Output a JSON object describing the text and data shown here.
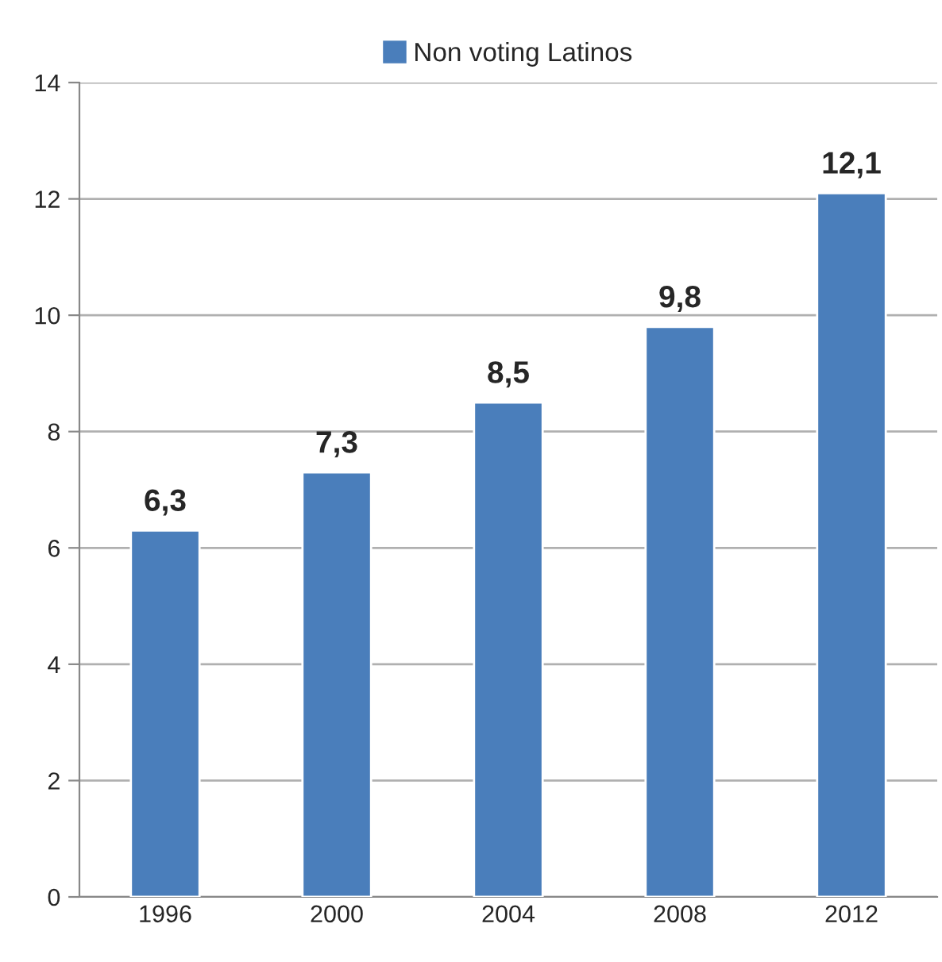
{
  "chart_data": {
    "type": "bar",
    "categories": [
      "1996",
      "2000",
      "2004",
      "2008",
      "2012"
    ],
    "series": [
      {
        "name": "Non voting Latinos",
        "color": "#4a7ebb",
        "values": [
          6.3,
          7.3,
          8.5,
          9.8,
          12.1
        ],
        "value_labels": [
          "6,3",
          "7,3",
          "8,5",
          "9,8",
          "12,1"
        ]
      }
    ],
    "ylim": [
      0,
      14
    ],
    "yticks": [
      0,
      2,
      4,
      6,
      8,
      10,
      12,
      14
    ],
    "grid": "y",
    "legend": "top"
  }
}
